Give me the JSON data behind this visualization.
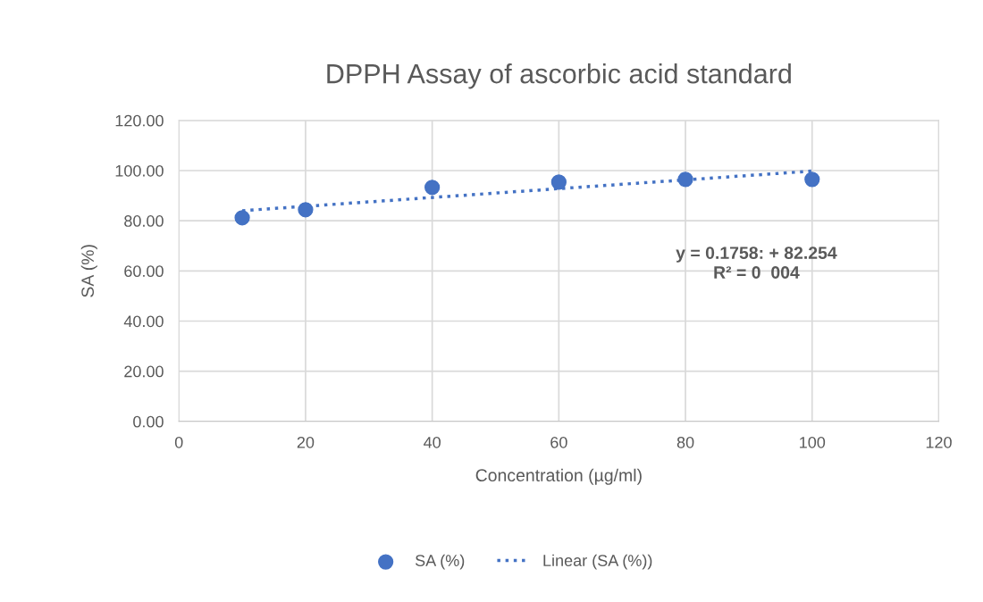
{
  "chart_data": {
    "type": "scatter",
    "title": "DPPH Assay of ascorbic acid standard",
    "xlabel": "Concentration (µg/ml)",
    "ylabel": "SA (%)",
    "x": [
      10,
      20,
      40,
      60,
      80,
      100
    ],
    "series": [
      {
        "name": "SA (%)",
        "color": "#4472c4",
        "marker": "circle",
        "values": [
          81.2,
          84.4,
          93.3,
          95.4,
          96.5,
          96.5
        ]
      },
      {
        "name": "Linear (SA (%))",
        "type": "line",
        "color": "#4472c4",
        "line_style": "dotted",
        "marker": "none",
        "x": [
          10,
          100
        ],
        "values": [
          84.0,
          99.8
        ]
      }
    ],
    "annotations": [
      "y = 0.1758: + 82.254",
      "R² = 0  004"
    ],
    "xlim": [
      0,
      120
    ],
    "xticks": [
      0,
      20,
      40,
      60,
      80,
      100,
      120
    ],
    "ylim": [
      0,
      120
    ],
    "yticks": [
      {
        "value": 0,
        "label": "0.00"
      },
      {
        "value": 20,
        "label": "20.00"
      },
      {
        "value": 40,
        "label": "40.00"
      },
      {
        "value": 60,
        "label": "60.00"
      },
      {
        "value": 80,
        "label": "80.00"
      },
      {
        "value": 100,
        "label": "100.00"
      },
      {
        "value": 120,
        "label": "120.00"
      }
    ],
    "grid": true,
    "legend": "bottom"
  }
}
